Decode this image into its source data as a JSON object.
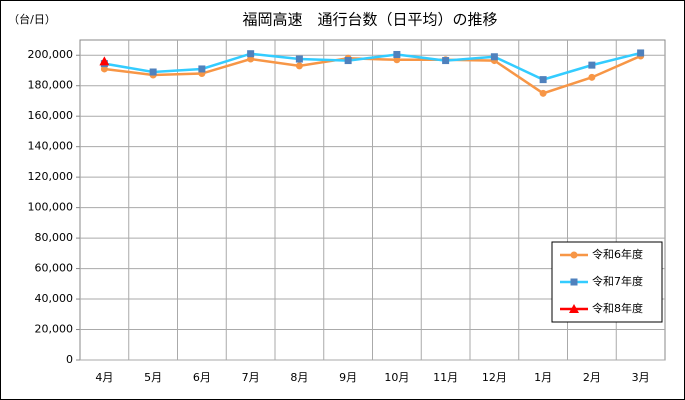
{
  "chart_data": {
    "type": "line",
    "title": "福岡高速　通行台数（日平均）の推移",
    "y_label": "（台/日）",
    "categories": [
      "4月",
      "5月",
      "6月",
      "7月",
      "8月",
      "9月",
      "10月",
      "11月",
      "12月",
      "1月",
      "2月",
      "3月"
    ],
    "series": [
      {
        "name": "令和6年度",
        "color": "#f79646",
        "marker_color": "#f79646",
        "marker": "circle",
        "values": [
          191000,
          187000,
          188000,
          197500,
          193000,
          198000,
          197000,
          197000,
          196500,
          175000,
          185500,
          199500
        ]
      },
      {
        "name": "令和7年度",
        "color": "#33ccff",
        "marker_color": "#4f81bd",
        "marker": "square",
        "values": [
          194500,
          189000,
          191000,
          201000,
          197500,
          196500,
          200500,
          196500,
          199000,
          184000,
          193500,
          201500
        ]
      },
      {
        "name": "令和8年度",
        "color": "#ff0000",
        "marker_color": "#ff0000",
        "marker": "triangle",
        "values": [
          196000,
          null,
          null,
          null,
          null,
          null,
          null,
          null,
          null,
          null,
          null,
          null
        ]
      }
    ],
    "ylim": [
      0,
      210000
    ],
    "yticks": [
      0,
      {
        "value": 20000,
        "label": "20,000"
      },
      {
        "value": 40000,
        "label": "40,000"
      },
      {
        "value": 60000,
        "label": "60,000"
      },
      {
        "value": 80000,
        "label": "80,000"
      },
      {
        "value": 100000,
        "label": "100,000"
      },
      {
        "value": 120000,
        "label": "120,000"
      },
      {
        "value": 140000,
        "label": "140,000"
      },
      {
        "value": 160000,
        "label": "160,000"
      },
      {
        "value": 180000,
        "label": "180,000"
      },
      {
        "value": 200000,
        "label": "200,000"
      }
    ],
    "grid": true,
    "legend": "bottom-right"
  }
}
